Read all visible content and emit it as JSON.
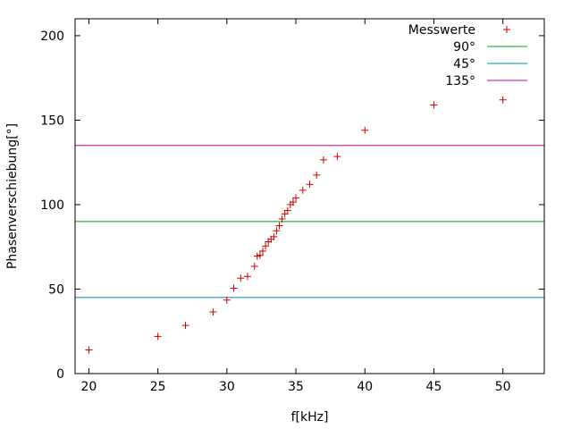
{
  "chart_data": {
    "type": "scatter",
    "title": "",
    "xlabel": "f[kHz]",
    "ylabel": "Phasenverschiebung[°]",
    "xlim": [
      19,
      53
    ],
    "ylim": [
      0,
      210
    ],
    "xticks": [
      20,
      25,
      30,
      35,
      40,
      45,
      50
    ],
    "yticks": [
      0,
      50,
      100,
      150,
      200
    ],
    "grid": false,
    "legend_position": "top-right",
    "series": [
      {
        "name": "Messwerte",
        "kind": "points",
        "marker": "plus",
        "color": "#cc0000",
        "x": [
          20,
          25,
          27,
          29,
          30,
          30.5,
          31,
          31.5,
          32,
          32.2,
          32.4,
          32.6,
          32.8,
          33,
          33.2,
          33.4,
          33.6,
          33.8,
          34,
          34.2,
          34.4,
          34.6,
          34.8,
          35,
          35.5,
          36,
          36.5,
          37,
          38,
          40,
          45,
          50
        ],
        "y": [
          14,
          22,
          28.5,
          36.5,
          43.5,
          50.5,
          56.5,
          57.5,
          63.5,
          69.5,
          70,
          72.5,
          75.5,
          78,
          79.5,
          81,
          84.5,
          87.5,
          91.5,
          94.5,
          96.5,
          100,
          101.5,
          104,
          108.5,
          112,
          117.5,
          126.5,
          128.5,
          144,
          159,
          162
        ]
      },
      {
        "name": "90°",
        "kind": "hline",
        "y": 90,
        "color": "#00a000"
      },
      {
        "name": "45°",
        "kind": "hline",
        "y": 45,
        "color": "#0080c0"
      },
      {
        "name": "135°",
        "kind": "hline",
        "y": 135,
        "color": "#c000a0"
      }
    ]
  }
}
